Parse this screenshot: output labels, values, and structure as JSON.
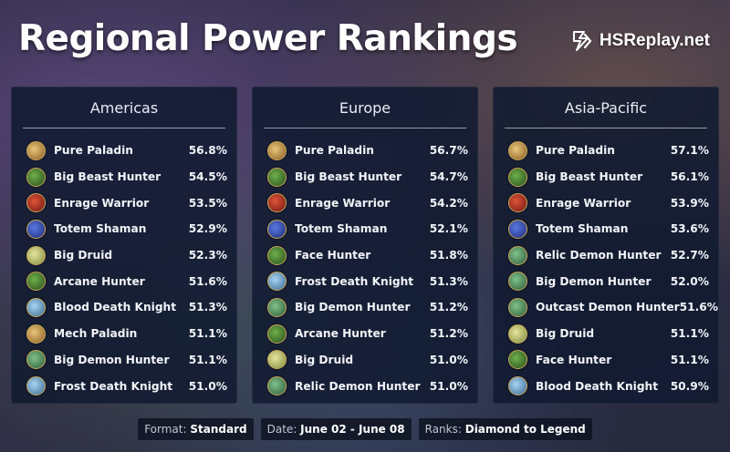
{
  "header": {
    "title": "Regional Power Rankings",
    "brand": "HSReplay.net"
  },
  "colors": {
    "panel_bg": "#101a30",
    "icon_border": "#c9a85a"
  },
  "regions": [
    {
      "name": "Americas",
      "decks": [
        {
          "name": "Pure Paladin",
          "winrate": "56.8%",
          "icon": "paladin-icon"
        },
        {
          "name": "Big Beast Hunter",
          "winrate": "54.5%",
          "icon": "hunter-icon"
        },
        {
          "name": "Enrage Warrior",
          "winrate": "53.5%",
          "icon": "warrior-icon"
        },
        {
          "name": "Totem Shaman",
          "winrate": "52.9%",
          "icon": "shaman-icon"
        },
        {
          "name": "Big Druid",
          "winrate": "52.3%",
          "icon": "druid-icon"
        },
        {
          "name": "Arcane Hunter",
          "winrate": "51.6%",
          "icon": "hunter-icon"
        },
        {
          "name": "Blood Death Knight",
          "winrate": "51.3%",
          "icon": "death-knight-icon"
        },
        {
          "name": "Mech Paladin",
          "winrate": "51.1%",
          "icon": "paladin-icon"
        },
        {
          "name": "Big Demon Hunter",
          "winrate": "51.1%",
          "icon": "demon-hunter-icon"
        },
        {
          "name": "Frost Death Knight",
          "winrate": "51.0%",
          "icon": "death-knight-icon"
        }
      ]
    },
    {
      "name": "Europe",
      "decks": [
        {
          "name": "Pure Paladin",
          "winrate": "56.7%",
          "icon": "paladin-icon"
        },
        {
          "name": "Big Beast Hunter",
          "winrate": "54.7%",
          "icon": "hunter-icon"
        },
        {
          "name": "Enrage Warrior",
          "winrate": "54.2%",
          "icon": "warrior-icon"
        },
        {
          "name": "Totem Shaman",
          "winrate": "52.1%",
          "icon": "shaman-icon"
        },
        {
          "name": "Face Hunter",
          "winrate": "51.8%",
          "icon": "hunter-icon"
        },
        {
          "name": "Frost Death Knight",
          "winrate": "51.3%",
          "icon": "death-knight-icon"
        },
        {
          "name": "Big Demon Hunter",
          "winrate": "51.2%",
          "icon": "demon-hunter-icon"
        },
        {
          "name": "Arcane Hunter",
          "winrate": "51.2%",
          "icon": "hunter-icon"
        },
        {
          "name": "Big Druid",
          "winrate": "51.0%",
          "icon": "druid-icon"
        },
        {
          "name": "Relic Demon Hunter",
          "winrate": "51.0%",
          "icon": "demon-hunter-icon"
        }
      ]
    },
    {
      "name": "Asia-Pacific",
      "decks": [
        {
          "name": "Pure Paladin",
          "winrate": "57.1%",
          "icon": "paladin-icon"
        },
        {
          "name": "Big Beast Hunter",
          "winrate": "56.1%",
          "icon": "hunter-icon"
        },
        {
          "name": "Enrage Warrior",
          "winrate": "53.9%",
          "icon": "warrior-icon"
        },
        {
          "name": "Totem Shaman",
          "winrate": "53.6%",
          "icon": "shaman-icon"
        },
        {
          "name": "Relic Demon Hunter",
          "winrate": "52.7%",
          "icon": "demon-hunter-icon"
        },
        {
          "name": "Big Demon Hunter",
          "winrate": "52.0%",
          "icon": "demon-hunter-icon"
        },
        {
          "name": "Outcast Demon Hunter",
          "winrate": "51.6%",
          "icon": "demon-hunter-icon"
        },
        {
          "name": "Big Druid",
          "winrate": "51.1%",
          "icon": "druid-icon"
        },
        {
          "name": "Face Hunter",
          "winrate": "51.1%",
          "icon": "hunter-icon"
        },
        {
          "name": "Blood Death Knight",
          "winrate": "50.9%",
          "icon": "death-knight-icon"
        }
      ]
    }
  ],
  "footer": {
    "format_label": "Format:",
    "format_value": "Standard",
    "date_label": "Date:",
    "date_value": "June 02 - June 08",
    "ranks_label": "Ranks:",
    "ranks_value": "Diamond to Legend"
  }
}
